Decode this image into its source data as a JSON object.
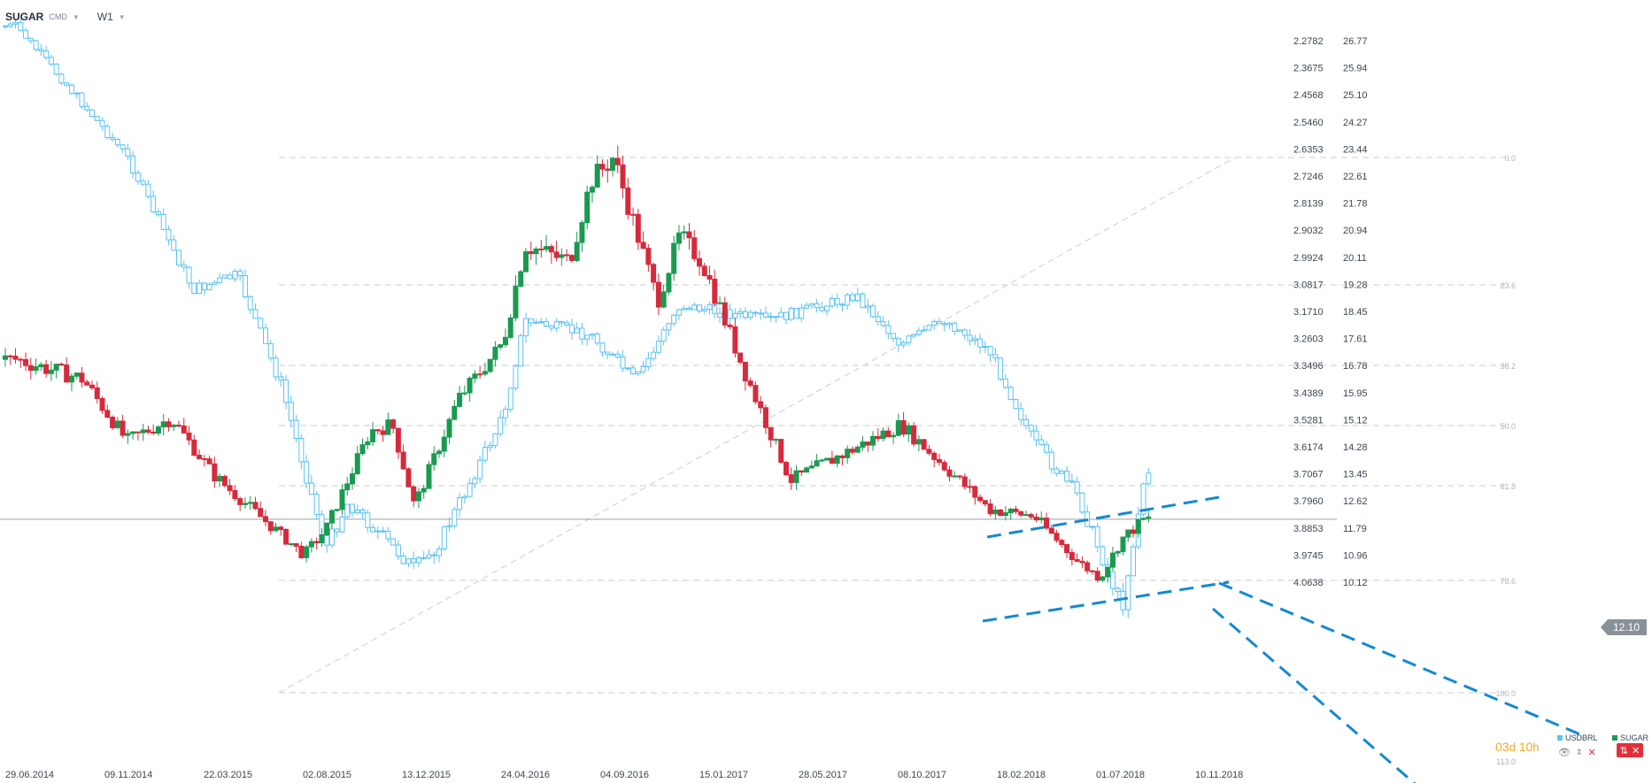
{
  "header": {
    "symbol": "SUGAR",
    "source": "CMD",
    "timeframe": "W1"
  },
  "countdown": {
    "days": "03",
    "days_unit": "d",
    "hours": "10",
    "hours_unit": "h"
  },
  "current_price_tag": "12.10",
  "legend": [
    {
      "name": "USDBRL",
      "color": "#5bc2f2"
    },
    {
      "name": "SUGAR",
      "color": "#1a9a50"
    }
  ],
  "icons": {
    "eye": "eye-icon",
    "arrows": "up-down-arrows-icon",
    "close": "close-icon",
    "settings": "settings-icon"
  },
  "colors": {
    "up": "#1a9a50",
    "down": "#d62a3c",
    "usdbrl": "#5bc2f2",
    "trendline": "#1589d0",
    "fib": "#cccccc"
  },
  "chart_data": {
    "type": "candlestick",
    "x_tick_labels": [
      "29.06.2014",
      "09.11.2014",
      "22.03.2015",
      "02.08.2015",
      "13.12.2015",
      "24.04.2016",
      "04.09.2016",
      "15.01.2017",
      "28.05.2017",
      "08.10.2017",
      "18.02.2018",
      "01.07.2018",
      "10.11.2018"
    ],
    "left_axis_labels": [
      "2.2782",
      "2.3675",
      "2.4568",
      "2.5460",
      "2.6353",
      "2.7246",
      "2.8139",
      "2.9032",
      "2.9924",
      "3.0817",
      "3.1710",
      "3.2603",
      "3.3496",
      "3.4389",
      "3.5281",
      "3.6174",
      "3.7067",
      "3.7960",
      "3.8853",
      "3.9745",
      "4.0638"
    ],
    "right_axis_labels": [
      "26.77",
      "25.94",
      "25.10",
      "24.27",
      "23.44",
      "22.61",
      "21.78",
      "20.94",
      "20.11",
      "19.28",
      "18.45",
      "17.61",
      "16.78",
      "15.95",
      "15.12",
      "14.28",
      "13.45",
      "12.62",
      "11.79",
      "10.96",
      "10.12"
    ],
    "fib_levels": [
      "0.0",
      "23.6",
      "38.2",
      "50.0",
      "61.8",
      "78.6",
      "100.0",
      "113.0"
    ],
    "current_value": 12.1,
    "series": [
      {
        "name": "SUGAR",
        "axis": "right",
        "key_points": [
          {
            "date": "2014-07",
            "close": 17.0
          },
          {
            "date": "2014-10",
            "close": 16.4
          },
          {
            "date": "2014-12",
            "close": 14.5
          },
          {
            "date": "2015-02",
            "close": 15.2
          },
          {
            "date": "2015-04",
            "close": 13.4
          },
          {
            "date": "2015-06",
            "close": 12.2
          },
          {
            "date": "2015-08",
            "close": 11.0
          },
          {
            "date": "2015-09",
            "close": 11.8
          },
          {
            "date": "2015-11",
            "close": 14.8
          },
          {
            "date": "2015-12",
            "close": 15.0
          },
          {
            "date": "2016-01",
            "close": 12.5
          },
          {
            "date": "2016-03",
            "close": 15.8
          },
          {
            "date": "2016-05",
            "close": 17.5
          },
          {
            "date": "2016-06",
            "close": 20.5
          },
          {
            "date": "2016-08",
            "close": 20.0
          },
          {
            "date": "2016-09",
            "close": 22.5
          },
          {
            "date": "2016-10",
            "close": 23.2
          },
          {
            "date": "2016-12",
            "close": 18.8
          },
          {
            "date": "2017-01",
            "close": 20.8
          },
          {
            "date": "2017-02",
            "close": 20.0
          },
          {
            "date": "2017-04",
            "close": 16.5
          },
          {
            "date": "2017-06",
            "close": 13.3
          },
          {
            "date": "2017-09",
            "close": 14.3
          },
          {
            "date": "2017-11",
            "close": 15.0
          },
          {
            "date": "2018-01",
            "close": 13.7
          },
          {
            "date": "2018-03",
            "close": 12.4
          },
          {
            "date": "2018-05",
            "close": 12.2
          },
          {
            "date": "2018-07",
            "close": 10.8
          },
          {
            "date": "2018-08",
            "close": 10.3
          },
          {
            "date": "2018-09",
            "close": 11.5
          },
          {
            "date": "2018-10",
            "close": 12.1
          }
        ]
      },
      {
        "name": "USDBRL",
        "axis": "left",
        "key_points": [
          {
            "date": "2014-07",
            "close": 2.23
          },
          {
            "date": "2014-09",
            "close": 2.4
          },
          {
            "date": "2014-12",
            "close": 2.66
          },
          {
            "date": "2015-03",
            "close": 3.1
          },
          {
            "date": "2015-05",
            "close": 3.05
          },
          {
            "date": "2015-07",
            "close": 3.42
          },
          {
            "date": "2015-09",
            "close": 3.95
          },
          {
            "date": "2015-10",
            "close": 3.8
          },
          {
            "date": "2016-01",
            "close": 4.02
          },
          {
            "date": "2016-02",
            "close": 3.95
          },
          {
            "date": "2016-05",
            "close": 3.52
          },
          {
            "date": "2016-06",
            "close": 3.2
          },
          {
            "date": "2016-09",
            "close": 3.25
          },
          {
            "date": "2016-11",
            "close": 3.4
          },
          {
            "date": "2017-01",
            "close": 3.15
          },
          {
            "date": "2017-05",
            "close": 3.2
          },
          {
            "date": "2017-09",
            "close": 3.12
          },
          {
            "date": "2017-11",
            "close": 3.28
          },
          {
            "date": "2018-01",
            "close": 3.2
          },
          {
            "date": "2018-03",
            "close": 3.3
          },
          {
            "date": "2018-05",
            "close": 3.6
          },
          {
            "date": "2018-07",
            "close": 3.78
          },
          {
            "date": "2018-09",
            "close": 4.15
          },
          {
            "date": "2018-10",
            "close": 3.72
          }
        ]
      }
    ]
  }
}
